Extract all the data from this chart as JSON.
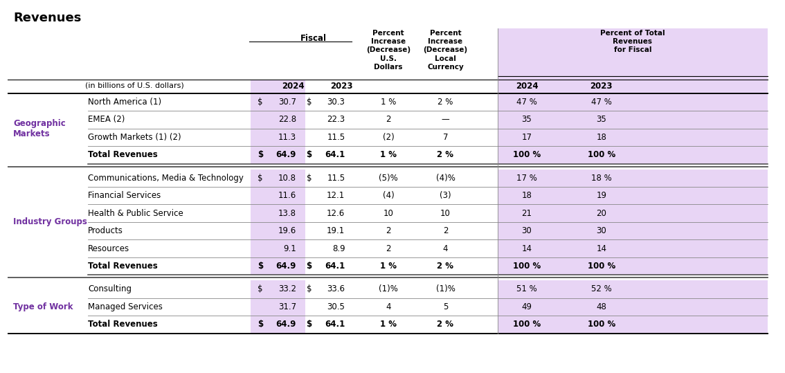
{
  "title": "Revenues",
  "sections": [
    {
      "group_label": "Geographic\nMarkets",
      "rows": [
        {
          "label": "North America (1)",
          "ds24": "$",
          "v24": "30.7",
          "ds23": "$",
          "v23": "30.3",
          "pus": "1 %",
          "plc": "2 %",
          "pt24": "47 %",
          "pt23": "47 %",
          "bold": false
        },
        {
          "label": "EMEA (2)",
          "ds24": "",
          "v24": "22.8",
          "ds23": "",
          "v23": "22.3",
          "pus": "2",
          "plc": "—",
          "pt24": "35",
          "pt23": "35",
          "bold": false
        },
        {
          "label": "Growth Markets (1) (2)",
          "ds24": "",
          "v24": "11.3",
          "ds23": "",
          "v23": "11.5",
          "pus": "(2)",
          "plc": "7",
          "pt24": "17",
          "pt23": "18",
          "bold": false
        },
        {
          "label": "Total Revenues",
          "ds24": "$",
          "v24": "64.9",
          "ds23": "$",
          "v23": "64.1",
          "pus": "1 %",
          "plc": "2 %",
          "pt24": "100 %",
          "pt23": "100 %",
          "bold": true
        }
      ]
    },
    {
      "group_label": "Industry Groups",
      "rows": [
        {
          "label": "Communications, Media & Technology",
          "ds24": "$",
          "v24": "10.8",
          "ds23": "$",
          "v23": "11.5",
          "pus": "(5)%",
          "plc": "(4)%",
          "pt24": "17 %",
          "pt23": "18 %",
          "bold": false
        },
        {
          "label": "Financial Services",
          "ds24": "",
          "v24": "11.6",
          "ds23": "",
          "v23": "12.1",
          "pus": "(4)",
          "plc": "(3)",
          "pt24": "18",
          "pt23": "19",
          "bold": false
        },
        {
          "label": "Health & Public Service",
          "ds24": "",
          "v24": "13.8",
          "ds23": "",
          "v23": "12.6",
          "pus": "10",
          "plc": "10",
          "pt24": "21",
          "pt23": "20",
          "bold": false
        },
        {
          "label": "Products",
          "ds24": "",
          "v24": "19.6",
          "ds23": "",
          "v23": "19.1",
          "pus": "2",
          "plc": "2",
          "pt24": "30",
          "pt23": "30",
          "bold": false
        },
        {
          "label": "Resources",
          "ds24": "",
          "v24": "9.1",
          "ds23": "",
          "v23": "8.9",
          "pus": "2",
          "plc": "4",
          "pt24": "14",
          "pt23": "14",
          "bold": false
        },
        {
          "label": "Total Revenues",
          "ds24": "$",
          "v24": "64.9",
          "ds23": "$",
          "v23": "64.1",
          "pus": "1 %",
          "plc": "2 %",
          "pt24": "100 %",
          "pt23": "100 %",
          "bold": true
        }
      ]
    },
    {
      "group_label": "Type of Work",
      "rows": [
        {
          "label": "Consulting",
          "ds24": "$",
          "v24": "33.2",
          "ds23": "$",
          "v23": "33.6",
          "pus": "(1)%",
          "plc": "(1)%",
          "pt24": "51 %",
          "pt23": "52 %",
          "bold": false
        },
        {
          "label": "Managed Services",
          "ds24": "",
          "v24": "31.7",
          "ds23": "",
          "v23": "30.5",
          "pus": "4",
          "plc": "5",
          "pt24": "49",
          "pt23": "48",
          "bold": false
        },
        {
          "label": "Total Revenues",
          "ds24": "$",
          "v24": "64.9",
          "ds23": "$",
          "v23": "64.1",
          "pus": "1 %",
          "plc": "2 %",
          "pt24": "100 %",
          "pt23": "100 %",
          "bold": true
        }
      ]
    }
  ],
  "colors": {
    "purple": "#7030a0",
    "lavender": "#e8d5f5",
    "white": "#ffffff",
    "black": "#000000",
    "line_dark": "#444444",
    "line_mid": "#888888"
  }
}
